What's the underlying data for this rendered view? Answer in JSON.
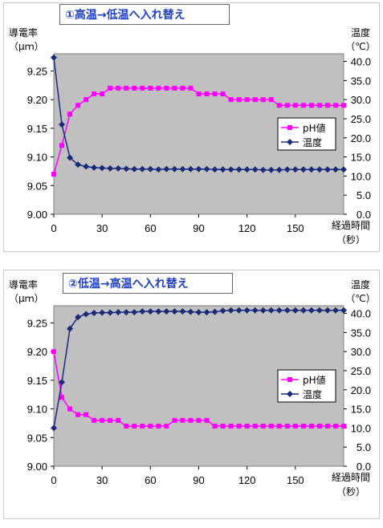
{
  "chart_data": [
    {
      "type": "line",
      "title": "①高温→低温へ入れ替え",
      "ylabel_left": [
        "導電率",
        "（μｍ）"
      ],
      "ylabel_right": [
        "温度",
        "（℃）"
      ],
      "xlabel": [
        "経過時間",
        "（秒）"
      ],
      "x_ticks": [
        "0",
        "30",
        "60",
        "90",
        "120",
        "150"
      ],
      "y_left_ticks": [
        "9.00",
        "9.05",
        "9.10",
        "9.15",
        "9.20",
        "9.25"
      ],
      "y_right_ticks": [
        "0.0",
        "5.0",
        "10.0",
        "15.0",
        "20.0",
        "25.0",
        "30.0",
        "35.0",
        "40.0"
      ],
      "xlim": [
        0,
        180
      ],
      "ylim_left": [
        9.0,
        9.28
      ],
      "ylim_right": [
        0,
        42
      ],
      "legend_position": "right",
      "series": [
        {
          "name": "pH値",
          "axis": "left",
          "color": "#ff00ff",
          "marker": "square",
          "x": [
            0,
            5,
            10,
            15,
            20,
            25,
            30,
            35,
            40,
            45,
            50,
            55,
            60,
            65,
            70,
            75,
            80,
            85,
            90,
            95,
            100,
            105,
            110,
            115,
            120,
            125,
            130,
            135,
            140,
            145,
            150,
            155,
            160,
            165,
            170,
            175,
            180
          ],
          "values": [
            9.07,
            9.12,
            9.175,
            9.19,
            9.2,
            9.21,
            9.21,
            9.22,
            9.22,
            9.22,
            9.22,
            9.22,
            9.22,
            9.22,
            9.22,
            9.22,
            9.22,
            9.22,
            9.21,
            9.21,
            9.21,
            9.21,
            9.2,
            9.2,
            9.2,
            9.2,
            9.2,
            9.2,
            9.19,
            9.19,
            9.19,
            9.19,
            9.19,
            9.19,
            9.19,
            9.19,
            9.19
          ]
        },
        {
          "name": "温度",
          "axis": "right",
          "color": "#1a2a7a",
          "marker": "diamond",
          "x": [
            0,
            5,
            10,
            15,
            20,
            25,
            30,
            35,
            40,
            45,
            50,
            55,
            60,
            65,
            70,
            75,
            80,
            85,
            90,
            95,
            100,
            105,
            110,
            115,
            120,
            125,
            130,
            135,
            140,
            145,
            150,
            155,
            160,
            165,
            170,
            175,
            180
          ],
          "values": [
            41.0,
            23.5,
            14.8,
            13.0,
            12.5,
            12.2,
            12.1,
            12.0,
            12.0,
            11.9,
            11.8,
            11.8,
            11.8,
            11.7,
            11.8,
            11.8,
            11.8,
            11.8,
            11.8,
            11.8,
            11.7,
            11.7,
            11.7,
            11.7,
            11.7,
            11.7,
            11.6,
            11.6,
            11.6,
            11.7,
            11.7,
            11.7,
            11.7,
            11.7,
            11.7,
            11.7,
            11.7
          ]
        }
      ]
    },
    {
      "type": "line",
      "title": "②低温→高温へ入れ替え",
      "ylabel_left": [
        "導電率",
        "（μｍ）"
      ],
      "ylabel_right": [
        "温度",
        "（℃）"
      ],
      "xlabel": [
        "経過時間",
        "（秒）"
      ],
      "x_ticks": [
        "0",
        "30",
        "60",
        "90",
        "120",
        "150"
      ],
      "y_left_ticks": [
        "9.00",
        "9.05",
        "9.10",
        "9.15",
        "9.20",
        "9.25"
      ],
      "y_right_ticks": [
        "0.0",
        "5.0",
        "10.0",
        "15.0",
        "20.0",
        "25.0",
        "30.0",
        "35.0",
        "40.0"
      ],
      "xlim": [
        0,
        180
      ],
      "ylim_left": [
        9.0,
        9.28
      ],
      "ylim_right": [
        0,
        42
      ],
      "legend_position": "right",
      "series": [
        {
          "name": "pH値",
          "axis": "left",
          "color": "#ff00ff",
          "marker": "square",
          "x": [
            0,
            5,
            10,
            15,
            20,
            25,
            30,
            35,
            40,
            45,
            50,
            55,
            60,
            65,
            70,
            75,
            80,
            85,
            90,
            95,
            100,
            105,
            110,
            115,
            120,
            125,
            130,
            135,
            140,
            145,
            150,
            155,
            160,
            165,
            170,
            175,
            180
          ],
          "values": [
            9.2,
            9.12,
            9.1,
            9.09,
            9.09,
            9.08,
            9.08,
            9.08,
            9.08,
            9.07,
            9.07,
            9.07,
            9.07,
            9.07,
            9.07,
            9.08,
            9.08,
            9.08,
            9.08,
            9.08,
            9.07,
            9.07,
            9.07,
            9.07,
            9.07,
            9.07,
            9.07,
            9.07,
            9.07,
            9.07,
            9.07,
            9.07,
            9.07,
            9.07,
            9.07,
            9.07,
            9.07
          ]
        },
        {
          "name": "温度",
          "axis": "right",
          "color": "#1a2a7a",
          "marker": "diamond",
          "x": [
            0,
            5,
            10,
            15,
            20,
            25,
            30,
            35,
            40,
            45,
            50,
            55,
            60,
            65,
            70,
            75,
            80,
            85,
            90,
            95,
            100,
            105,
            110,
            115,
            120,
            125,
            130,
            135,
            140,
            145,
            150,
            155,
            160,
            165,
            170,
            175,
            180
          ],
          "values": [
            10.0,
            22.0,
            36.0,
            39.0,
            39.8,
            40.1,
            40.2,
            40.2,
            40.3,
            40.3,
            40.3,
            40.5,
            40.5,
            40.5,
            40.5,
            40.5,
            40.5,
            40.4,
            40.3,
            40.3,
            40.4,
            40.7,
            40.8,
            40.8,
            40.8,
            40.8,
            40.8,
            40.8,
            40.8,
            40.8,
            40.8,
            40.8,
            40.8,
            40.8,
            40.8,
            40.8,
            40.8
          ]
        }
      ]
    }
  ]
}
